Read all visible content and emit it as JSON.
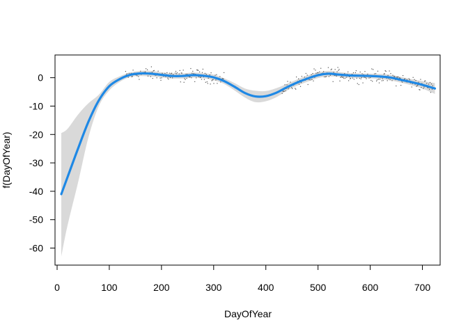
{
  "chart_data": {
    "type": "line",
    "title": "",
    "xlabel": "DayOfYear",
    "ylabel": "f(DayOfYear)",
    "xlim": [
      -4,
      734
    ],
    "ylim": [
      -66,
      8
    ],
    "xticks": [
      0,
      100,
      200,
      300,
      400,
      500,
      600,
      700
    ],
    "yticks": [
      0,
      -10,
      -20,
      -30,
      -40,
      -50,
      -60
    ],
    "grid": false,
    "legend": "none",
    "colors": {
      "smooth": "#1e88e5",
      "ribbon": "#d9d9d9",
      "points": "#555555",
      "axis": "#000000"
    },
    "smooth_fit": {
      "x": [
        8,
        20,
        40,
        60,
        80,
        100,
        120,
        140,
        160,
        180,
        200,
        220,
        240,
        260,
        280,
        300,
        320,
        340,
        360,
        380,
        400,
        420,
        440,
        460,
        480,
        500,
        520,
        540,
        560,
        580,
        600,
        620,
        640,
        660,
        680,
        700,
        724
      ],
      "y": [
        -41,
        -35,
        -25,
        -15.5,
        -8,
        -3,
        -0.5,
        1,
        1.5,
        1.4,
        1.0,
        0.6,
        0.6,
        0.9,
        0.7,
        0.1,
        -1.2,
        -3.2,
        -5.4,
        -6.6,
        -6.5,
        -5.3,
        -3.4,
        -1.7,
        -0.3,
        0.9,
        1.4,
        1.1,
        0.8,
        0.7,
        0.6,
        0.4,
        0.0,
        -0.8,
        -1.6,
        -2.5,
        -3.8
      ],
      "lower": [
        -63,
        -52,
        -37,
        -21,
        -10,
        -4.5,
        -1.5,
        0.2,
        0.6,
        0.4,
        0.1,
        -0.3,
        -0.3,
        0.0,
        -0.2,
        -0.9,
        -2.2,
        -4.5,
        -7.0,
        -8.6,
        -8.3,
        -6.9,
        -4.6,
        -2.8,
        -1.4,
        -0.1,
        0.4,
        0.3,
        0.0,
        -0.1,
        -0.2,
        -0.5,
        -1.0,
        -1.8,
        -2.7,
        -3.8,
        -5.7
      ],
      "upper": [
        -19.5,
        -18,
        -13,
        -9,
        -6,
        -1.5,
        0.5,
        1.8,
        2.4,
        2.4,
        1.9,
        1.5,
        1.5,
        1.8,
        1.6,
        1.1,
        -0.2,
        -1.9,
        -3.8,
        -4.6,
        -4.7,
        -3.7,
        -2.2,
        -0.6,
        0.8,
        1.9,
        2.4,
        2.0,
        1.6,
        1.5,
        1.4,
        1.3,
        1.0,
        0.2,
        -0.5,
        -1.2,
        -1.9
      ]
    },
    "partial_residuals": {
      "x_range_1": [
        130,
        320
      ],
      "x_range_2": [
        430,
        720
      ],
      "y_spread": 2.2
    }
  }
}
